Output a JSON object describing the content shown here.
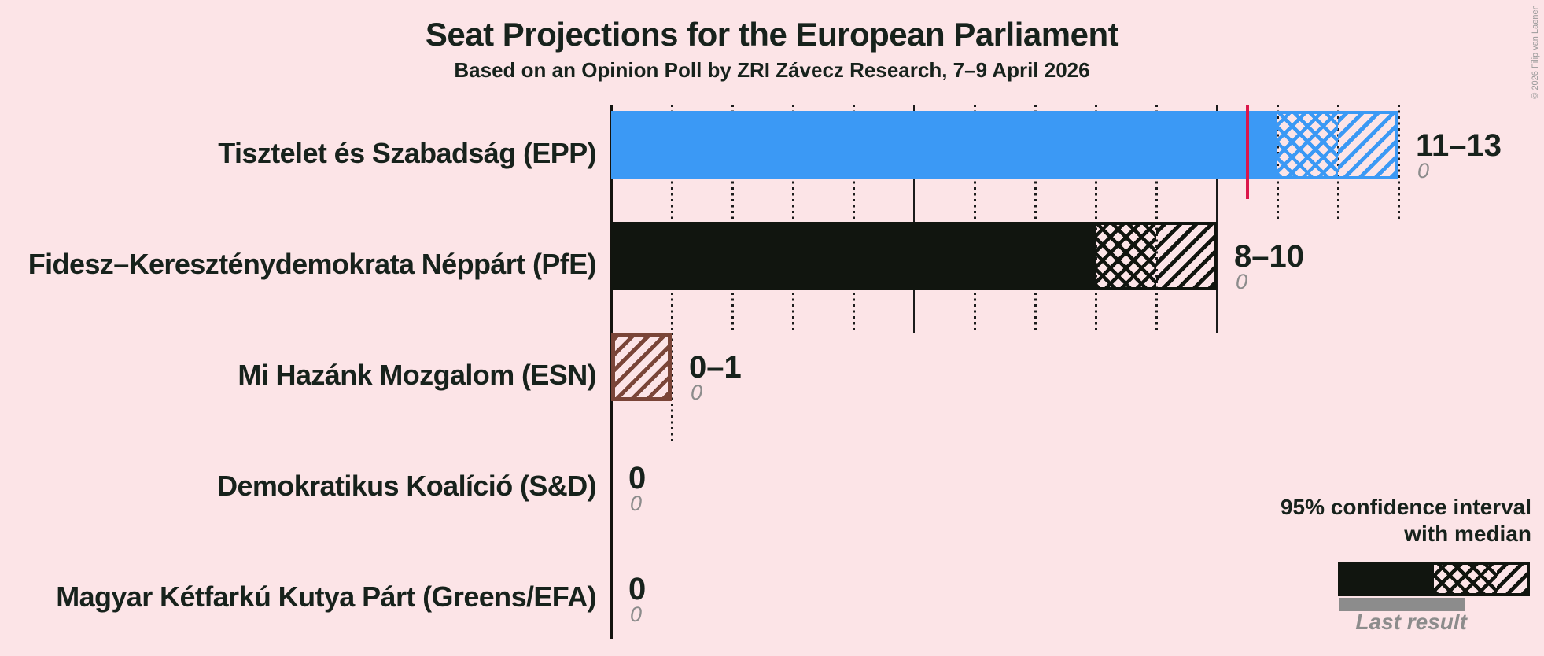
{
  "title": "Seat Projections for the European Parliament",
  "subtitle": "Based on an Opinion Poll by ZRI Závecz Research, 7–9 April 2026",
  "copyright": "© 2026 Filip van Laenen",
  "colors": {
    "background": "#fce4e7",
    "text": "#17221c",
    "gridline": "#1b1b1b",
    "majority_line": "#dc164b",
    "last_result_gray": "#8c8c8c",
    "epp_blue": "#3b99f5",
    "pfe_black": "#11150f",
    "esn_brown": "#7a4538"
  },
  "legend": {
    "ci_line1": "95% confidence interval",
    "ci_line2": "with median",
    "last_result_label": "Last result"
  },
  "chart_data": {
    "type": "bar",
    "orientation": "horizontal",
    "title": "Seat Projections for the European Parliament",
    "subtitle": "Based on an Opinion Poll by ZRI Závecz Research, 7–9 April 2026",
    "unit": "seats",
    "x_axis": {
      "min": 0,
      "max": 13,
      "dotted_gridline_every": 1,
      "solid_gridline_every": 5,
      "gridlines_drawn_to_each_bar_max": true
    },
    "majority_line": 10.5,
    "ci_level": "95%",
    "series": [
      {
        "label": "Tisztelet és Szabadság (EPP)",
        "color": "#3b99f5",
        "ci_low": 11,
        "median": 12,
        "ci_high": 13,
        "range_label": "11–13",
        "last_result": 0,
        "last_result_label": "0"
      },
      {
        "label": "Fidesz–Kereszténydemokrata Néppárt (PfE)",
        "color": "#11150f",
        "ci_low": 8,
        "median": 9,
        "ci_high": 10,
        "range_label": "8–10",
        "last_result": 0,
        "last_result_label": "0"
      },
      {
        "label": "Mi Hazánk Mozgalom (ESN)",
        "color": "#7a4538",
        "ci_low": 0,
        "median": 0,
        "ci_high": 1,
        "range_label": "0–1",
        "last_result": 0,
        "last_result_label": "0"
      },
      {
        "label": "Demokratikus Koalíció (S&D)",
        "color": null,
        "ci_low": 0,
        "median": 0,
        "ci_high": 0,
        "range_label": "0",
        "last_result": 0,
        "last_result_label": "0"
      },
      {
        "label": "Magyar Kétfarkú Kutya Párt (Greens/EFA)",
        "color": null,
        "ci_low": 0,
        "median": 0,
        "ci_high": 0,
        "range_label": "0",
        "last_result": 0,
        "last_result_label": "0"
      }
    ]
  }
}
